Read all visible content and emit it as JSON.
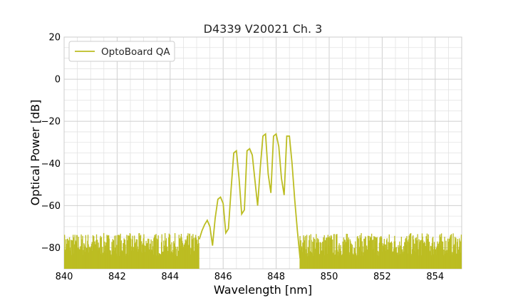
{
  "chart_data": {
    "type": "line",
    "title": "D4339 V20021 Ch. 3",
    "xlabel": "Wavelength [nm]",
    "ylabel": "Optical Power [dB]",
    "xlim": [
      840,
      855
    ],
    "ylim": [
      -90,
      20
    ],
    "xticks": [
      "840",
      "842",
      "844",
      "846",
      "848",
      "850",
      "852",
      "854"
    ],
    "yticks": [
      "20",
      "0",
      "−20",
      "−40",
      "−60",
      "−80"
    ],
    "grid": true,
    "legend_position": "top-left",
    "color": "#bcbd22",
    "series": [
      {
        "name": "OptoBoard QA",
        "x": [
          845.1,
          845.2,
          845.3,
          845.4,
          845.5,
          845.6,
          845.7,
          845.8,
          845.9,
          846.0,
          846.1,
          846.2,
          846.3,
          846.4,
          846.5,
          846.6,
          846.7,
          846.8,
          846.9,
          847.0,
          847.1,
          847.2,
          847.3,
          847.4,
          847.5,
          847.6,
          847.7,
          847.8,
          847.9,
          848.0,
          848.1,
          848.2,
          848.3,
          848.4,
          848.5,
          848.6,
          848.7,
          848.8,
          848.9
        ],
        "y": [
          -76,
          -72,
          -69,
          -67,
          -70,
          -79,
          -66,
          -57,
          -56,
          -59,
          -73,
          -71,
          -52,
          -35,
          -34,
          -47,
          -64,
          -62,
          -34,
          -33,
          -36,
          -48,
          -60,
          -42,
          -27,
          -26,
          -45,
          -54,
          -27,
          -26,
          -32,
          -47,
          -55,
          -27,
          -27,
          -40,
          -57,
          -72,
          -85
        ]
      }
    ],
    "noise_floor": {
      "range": [
        -90,
        -73
      ],
      "x_ranges": [
        [
          840.0,
          845.1
        ],
        [
          848.9,
          855.0
        ]
      ]
    }
  }
}
